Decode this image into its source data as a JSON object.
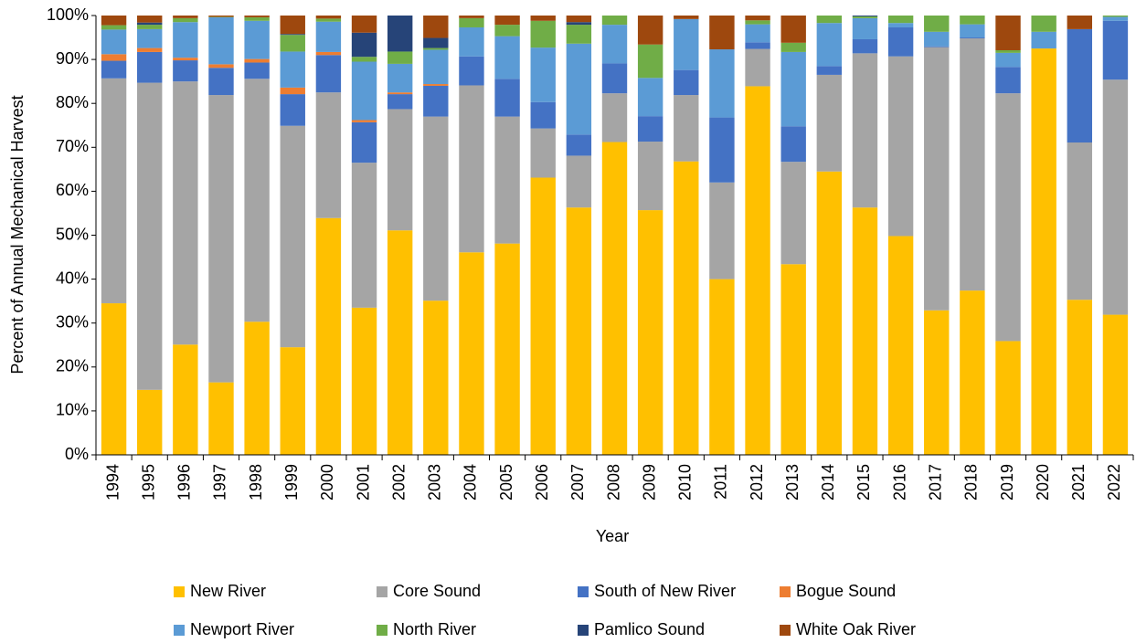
{
  "chart_data": {
    "type": "stacked_bar_percent",
    "x_label": "Year",
    "y_label": "Percent of Annual Mechanical Harvest",
    "categories": [
      "1994",
      "1995",
      "1996",
      "1997",
      "1998",
      "1999",
      "2000",
      "2001",
      "2002",
      "2003",
      "2004",
      "2005",
      "2006",
      "2007",
      "2008",
      "2009",
      "2010",
      "2011",
      "2012",
      "2013",
      "2014",
      "2015",
      "2016",
      "2017",
      "2018",
      "2019",
      "2020",
      "2021",
      "2022"
    ],
    "series": [
      {
        "name": "New River",
        "color": "#ffc000",
        "values": [
          34.5,
          14.8,
          25.1,
          16.5,
          30.3,
          24.5,
          53.9,
          33.5,
          51.1,
          35.1,
          46.1,
          48.1,
          63.1,
          56.3,
          71.2,
          55.7,
          66.8,
          40.0,
          83.9,
          43.4,
          64.5,
          56.3,
          49.8,
          32.9,
          37.4,
          25.9,
          92.5,
          35.3,
          31.9
        ]
      },
      {
        "name": "Core Sound",
        "color": "#a5a5a5",
        "values": [
          51.2,
          69.9,
          59.9,
          65.4,
          55.3,
          50.4,
          28.6,
          33.0,
          27.6,
          41.9,
          38.0,
          28.9,
          11.2,
          11.8,
          11.1,
          15.6,
          15.1,
          22.0,
          8.5,
          23.3,
          22.0,
          35.1,
          40.9,
          59.9,
          57.4,
          56.4,
          0,
          35.8,
          53.5
        ]
      },
      {
        "name": "South of New River",
        "color": "#4472c4",
        "values": [
          4.0,
          7.0,
          4.8,
          6.2,
          3.7,
          7.2,
          8.5,
          9.2,
          3.4,
          7.0,
          6.6,
          8.6,
          6.0,
          4.8,
          6.8,
          5.8,
          5.7,
          14.8,
          1.5,
          8.1,
          2.0,
          3.2,
          6.6,
          0.2,
          0.2,
          6.0,
          0,
          25.8,
          13.4
        ]
      },
      {
        "name": "Bogue Sound",
        "color": "#ed7d31",
        "values": [
          1.5,
          0.9,
          0.6,
          0.8,
          0.8,
          1.5,
          0.7,
          0.5,
          0.4,
          0.4,
          0,
          0,
          0,
          0,
          0,
          0,
          0,
          0,
          0,
          0,
          0,
          0,
          0,
          0,
          0,
          0,
          0,
          0,
          0
        ]
      },
      {
        "name": "Newport River",
        "color": "#5b9bd5",
        "values": [
          5.6,
          4.3,
          8.1,
          10.7,
          8.7,
          8.2,
          6.9,
          13.3,
          6.5,
          7.8,
          6.6,
          9.7,
          12.4,
          20.7,
          8.8,
          8.7,
          11.6,
          15.5,
          4.1,
          16.9,
          9.8,
          4.8,
          1.0,
          3.3,
          3.0,
          3.2,
          3.8,
          0,
          0.9
        ]
      },
      {
        "name": "North River",
        "color": "#70ad47",
        "values": [
          1.0,
          1.0,
          0.9,
          0.1,
          0.8,
          3.8,
          0.7,
          1.1,
          2.8,
          0.4,
          2.1,
          2.6,
          6.1,
          4.3,
          2.1,
          7.6,
          0,
          0,
          0.9,
          2.1,
          1.7,
          0.4,
          1.7,
          3.7,
          2.0,
          0.6,
          3.7,
          0,
          0.3
        ]
      },
      {
        "name": "Pamlico Sound",
        "color": "#264478",
        "values": [
          0,
          0.5,
          0,
          0,
          0,
          0.2,
          0,
          5.5,
          8.2,
          2.3,
          0,
          0,
          0,
          0.6,
          0,
          0,
          0,
          0,
          0,
          0,
          0,
          0.2,
          0,
          0,
          0,
          0,
          0,
          0,
          0
        ]
      },
      {
        "name": "White Oak River",
        "color": "#9e480e",
        "values": [
          2.2,
          1.6,
          0.6,
          0.3,
          0.4,
          4.2,
          0.7,
          3.9,
          0,
          5.1,
          0.6,
          2.1,
          1.2,
          1.5,
          0,
          6.6,
          0.8,
          7.7,
          1.1,
          6.2,
          0,
          0,
          0,
          0,
          0,
          7.9,
          0,
          3.1,
          0
        ]
      }
    ],
    "ylim": [
      0,
      100
    ],
    "yticks": [
      {
        "value": 0,
        "label": "0%"
      },
      {
        "value": 10,
        "label": "10%"
      },
      {
        "value": 20,
        "label": "20%"
      },
      {
        "value": 30,
        "label": "30%"
      },
      {
        "value": 40,
        "label": "40%"
      },
      {
        "value": 50,
        "label": "50%"
      },
      {
        "value": 60,
        "label": "60%"
      },
      {
        "value": 70,
        "label": "70%"
      },
      {
        "value": 80,
        "label": "80%"
      },
      {
        "value": 90,
        "label": "90%"
      },
      {
        "value": 100,
        "label": "100%"
      }
    ],
    "grid": false,
    "legend": "bottom"
  }
}
